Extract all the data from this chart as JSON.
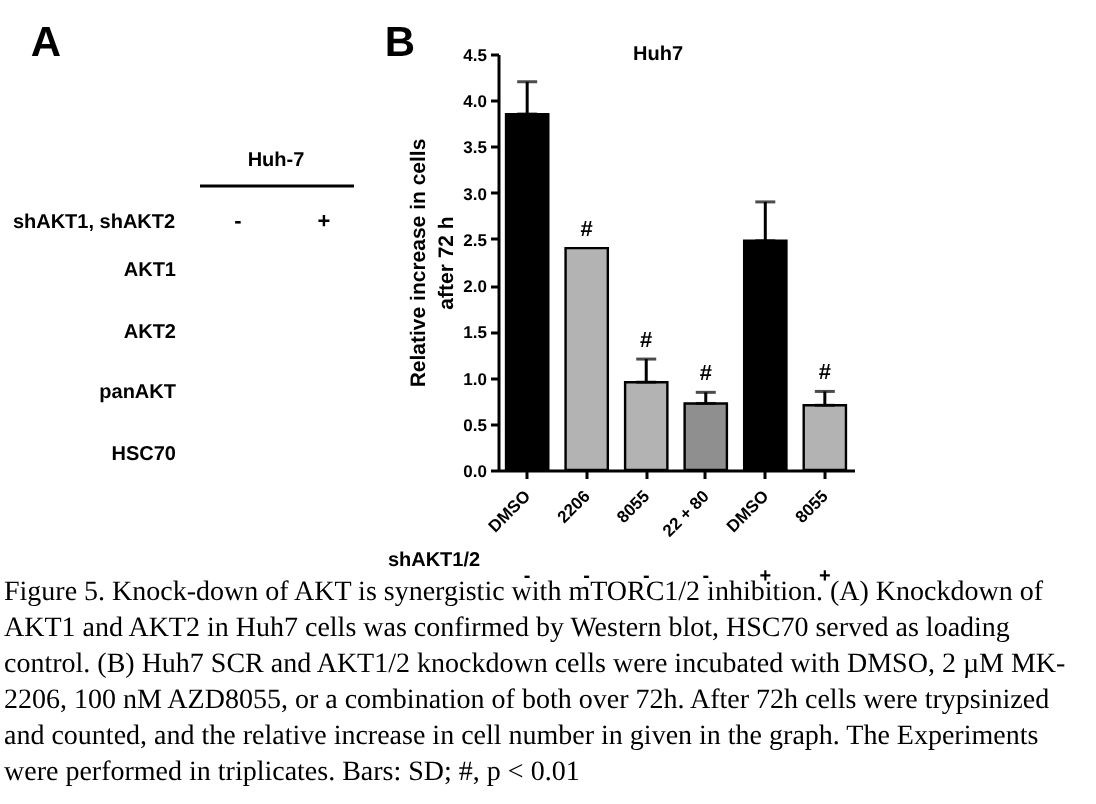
{
  "chart_data": [
    {
      "type": "other",
      "annotations": [
        "A",
        "Huh-7",
        "shAKT1, shAKT2",
        "-",
        "+",
        "AKT1",
        "AKT2",
        "panAKT",
        "HSC70"
      ]
    },
    {
      "type": "bar",
      "title": "Huh7",
      "ylabel": "Relative increase in cells after 72 h",
      "categories": [
        "DMSO",
        "2206",
        "8055",
        "22 + 80",
        "DMSO",
        "8055"
      ],
      "values": [
        3.85,
        2.4,
        0.95,
        0.72,
        2.48,
        0.7
      ],
      "colors": [
        "#000000",
        "#b3b3b3",
        "#b3b3b3",
        "#8f8f8f",
        "#000000",
        "#b3b3b3"
      ],
      "errors": [
        [
          3.85,
          4.2
        ],
        null,
        [
          0.95,
          1.2
        ],
        [
          0.72,
          0.84
        ],
        [
          2.48,
          2.9
        ],
        [
          0.7,
          0.85
        ]
      ],
      "value_labels": [
        null,
        "#",
        "#",
        "#",
        null,
        "#"
      ],
      "ylim": [
        0,
        4.5
      ],
      "yticks": [
        {
          "value": 0,
          "label": "0.0"
        },
        0.5,
        {
          "value": 1,
          "label": "1.0"
        },
        1.5,
        {
          "value": 2,
          "label": "2.0"
        },
        2.5,
        {
          "value": 3,
          "label": "3.0"
        },
        3.5,
        {
          "value": 4,
          "label": "4.0"
        },
        4.5
      ],
      "annotations": [
        "B",
        "shAKT1/2",
        "-",
        "-",
        "-",
        "-",
        "+",
        "+",
        "Figure 5. Knock-down of AKT is synergistic with mTORC1/2 inhibition. (A) Knockdown of AKT1 and AKT2 in Huh7 cells was confirmed by Western blot, HSC70 served as loading control. (B) Huh7 SCR and AKT1/2 knockdown cells were incubated with DMSO, 2 µM MK-2206, 100 nM AZD8055, or a combination of both over 72h. After 72h cells were trypsinized and counted, and the relative increase in cell number in given in the graph. The Experiments were performed in triplicates. Bars: SD; #, p < 0.01"
      ]
    }
  ]
}
